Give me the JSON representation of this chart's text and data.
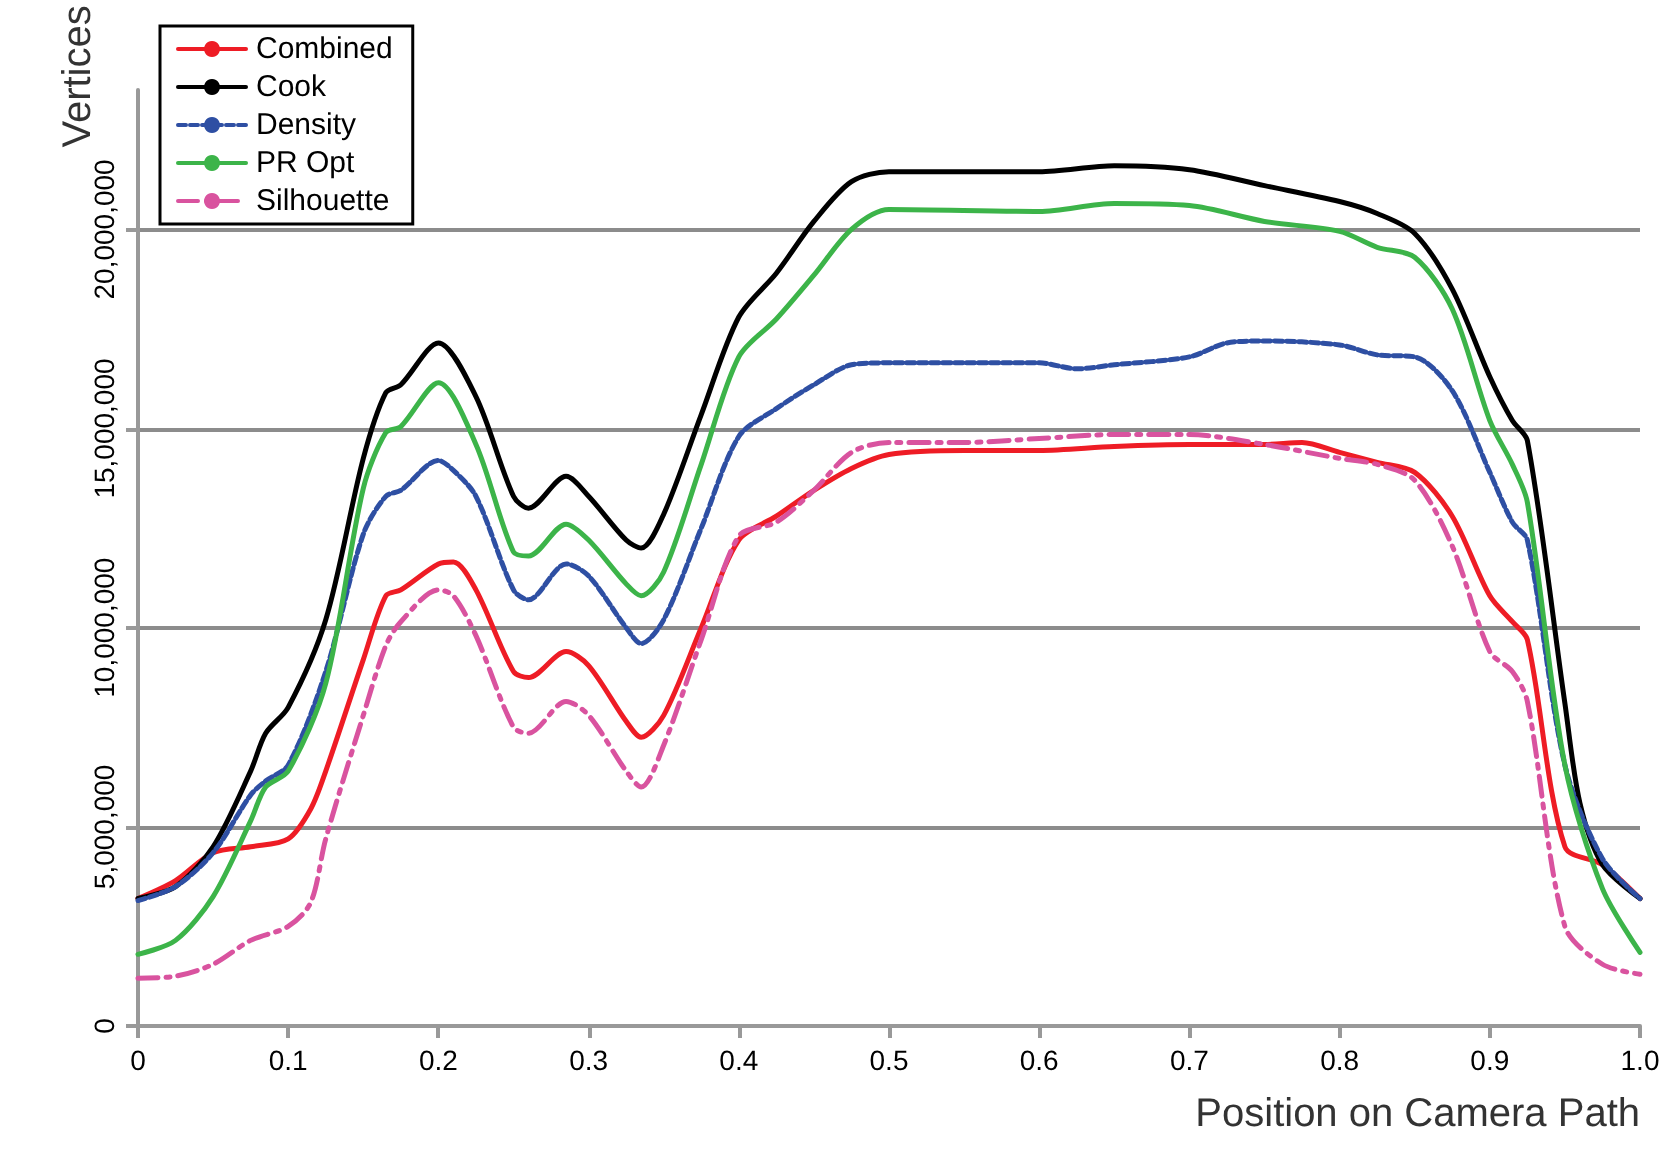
{
  "chart_data": {
    "type": "line",
    "xlabel": "Position on Camera Path",
    "ylabel": "Vertices",
    "xlim": [
      0,
      1
    ],
    "xticks": [
      0,
      0.1,
      0.2,
      0.3,
      0.4,
      0.5,
      0.6,
      0.7,
      0.8,
      0.9,
      {
        "value": 1,
        "label": "1.0"
      }
    ],
    "ylim": [
      0,
      23500000
    ],
    "yticks": [
      0,
      {
        "value": 5000000,
        "label": "5,000,000"
      },
      {
        "value": 10000000,
        "label": "10,000,000"
      },
      {
        "value": 15000000,
        "label": "15,000,000"
      },
      {
        "value": 20000000,
        "label": "20,000,000"
      }
    ],
    "grid": "y",
    "legend": "top left",
    "marker": "none",
    "series": [
      {
        "name": "Combined",
        "color": "#ee1c25",
        "line_style": "solid",
        "x": [
          0,
          0.025,
          0.05,
          0.075,
          0.1,
          0.115,
          0.125,
          0.15,
          0.165,
          0.175,
          0.2,
          0.21,
          0.225,
          0.25,
          0.26,
          0.285,
          0.3,
          0.325,
          0.335,
          0.35,
          0.375,
          0.4,
          0.425,
          0.45,
          0.475,
          0.5,
          0.55,
          0.6,
          0.65,
          0.7,
          0.75,
          0.775,
          0.8,
          0.825,
          0.85,
          0.875,
          0.9,
          0.915,
          0.925,
          0.95,
          0.975,
          1
        ],
        "values": [
          3200000,
          3650000,
          4350000,
          4500000,
          4700000,
          5450000,
          6400000,
          9200000,
          10800000,
          10950000,
          11600000,
          11650000,
          10950000,
          8900000,
          8750000,
          9400000,
          9050000,
          7650000,
          7250000,
          7800000,
          10000000,
          12200000,
          12800000,
          13450000,
          14000000,
          14350000,
          14450000,
          14450000,
          14550000,
          14600000,
          14600000,
          14650000,
          14400000,
          14150000,
          13900000,
          12800000,
          10800000,
          10150000,
          9700000,
          4500000,
          4050000,
          3200000
        ]
      },
      {
        "name": "Cook",
        "color": "#000000",
        "line_style": "solid",
        "x": [
          0,
          0.025,
          0.05,
          0.075,
          0.085,
          0.1,
          0.125,
          0.15,
          0.165,
          0.175,
          0.2,
          0.225,
          0.25,
          0.26,
          0.285,
          0.3,
          0.325,
          0.335,
          0.35,
          0.375,
          0.4,
          0.425,
          0.45,
          0.475,
          0.5,
          0.55,
          0.6,
          0.65,
          0.7,
          0.75,
          0.8,
          0.825,
          0.85,
          0.875,
          0.9,
          0.915,
          0.925,
          0.95,
          0.96,
          0.975,
          1
        ],
        "values": [
          3200000,
          3500000,
          4500000,
          6400000,
          7350000,
          8000000,
          10200000,
          14250000,
          15900000,
          16100000,
          17150000,
          15800000,
          13300000,
          13000000,
          13800000,
          13300000,
          12200000,
          12000000,
          12850000,
          15350000,
          17800000,
          18900000,
          20200000,
          21200000,
          21450000,
          21450000,
          21450000,
          21600000,
          21500000,
          21100000,
          20700000,
          20400000,
          19900000,
          18500000,
          16300000,
          15200000,
          14700000,
          8100000,
          5600000,
          4050000,
          3200000
        ]
      },
      {
        "name": "Density",
        "color": "#2e4fa3",
        "line_style": "dashed",
        "x": [
          0,
          0.025,
          0.05,
          0.075,
          0.085,
          0.1,
          0.125,
          0.15,
          0.165,
          0.175,
          0.2,
          0.21,
          0.225,
          0.25,
          0.26,
          0.285,
          0.3,
          0.325,
          0.335,
          0.35,
          0.375,
          0.4,
          0.425,
          0.45,
          0.475,
          0.5,
          0.55,
          0.6,
          0.625,
          0.65,
          0.7,
          0.725,
          0.75,
          0.8,
          0.825,
          0.85,
          0.875,
          0.9,
          0.915,
          0.925,
          0.95,
          0.975,
          1
        ],
        "values": [
          3150000,
          3500000,
          4350000,
          5800000,
          6150000,
          6550000,
          8900000,
          12350000,
          13300000,
          13450000,
          14200000,
          13950000,
          13300000,
          10950000,
          10700000,
          11600000,
          11300000,
          10000000,
          9600000,
          10200000,
          12500000,
          14800000,
          15500000,
          16100000,
          16600000,
          16650000,
          16650000,
          16650000,
          16500000,
          16600000,
          16800000,
          17150000,
          17200000,
          17100000,
          16850000,
          16800000,
          15950000,
          13900000,
          12650000,
          12200000,
          6550000,
          4200000,
          3200000
        ]
      },
      {
        "name": "PR Opt",
        "color": "#3cb449",
        "line_style": "solid",
        "x": [
          0,
          0.025,
          0.05,
          0.075,
          0.085,
          0.1,
          0.125,
          0.15,
          0.165,
          0.175,
          0.2,
          0.225,
          0.25,
          0.26,
          0.285,
          0.3,
          0.325,
          0.335,
          0.35,
          0.375,
          0.4,
          0.425,
          0.45,
          0.475,
          0.5,
          0.6,
          0.65,
          0.7,
          0.75,
          0.8,
          0.825,
          0.85,
          0.875,
          0.9,
          0.915,
          0.925,
          0.95,
          0.975,
          1
        ],
        "values": [
          1800000,
          2150000,
          3250000,
          5150000,
          6000000,
          6400000,
          8600000,
          13500000,
          14900000,
          15050000,
          16150000,
          14600000,
          11900000,
          11800000,
          12600000,
          12200000,
          11100000,
          10800000,
          11400000,
          14100000,
          16800000,
          17750000,
          18850000,
          20000000,
          20500000,
          20450000,
          20650000,
          20600000,
          20200000,
          19950000,
          19550000,
          19300000,
          18000000,
          15200000,
          14100000,
          13150000,
          6550000,
          3450000,
          1850000
        ]
      },
      {
        "name": "Silhouette",
        "color": "#d9539f",
        "line_style": "dashdot",
        "x": [
          0,
          0.025,
          0.05,
          0.075,
          0.1,
          0.115,
          0.125,
          0.15,
          0.165,
          0.175,
          0.2,
          0.21,
          0.225,
          0.25,
          0.26,
          0.285,
          0.3,
          0.325,
          0.335,
          0.35,
          0.375,
          0.4,
          0.425,
          0.45,
          0.475,
          0.5,
          0.55,
          0.6,
          0.65,
          0.7,
          0.75,
          0.8,
          0.825,
          0.85,
          0.875,
          0.9,
          0.915,
          0.925,
          0.95,
          0.975,
          1
        ],
        "values": [
          1200000,
          1250000,
          1550000,
          2150000,
          2500000,
          3100000,
          4700000,
          7800000,
          9550000,
          10150000,
          10950000,
          10800000,
          9800000,
          7500000,
          7350000,
          8150000,
          7800000,
          6400000,
          6000000,
          7050000,
          9700000,
          12300000,
          12650000,
          13450000,
          14400000,
          14650000,
          14650000,
          14750000,
          14850000,
          14850000,
          14600000,
          14250000,
          14100000,
          13700000,
          12050000,
          9400000,
          8900000,
          8150000,
          2500000,
          1550000,
          1300000
        ]
      }
    ]
  }
}
